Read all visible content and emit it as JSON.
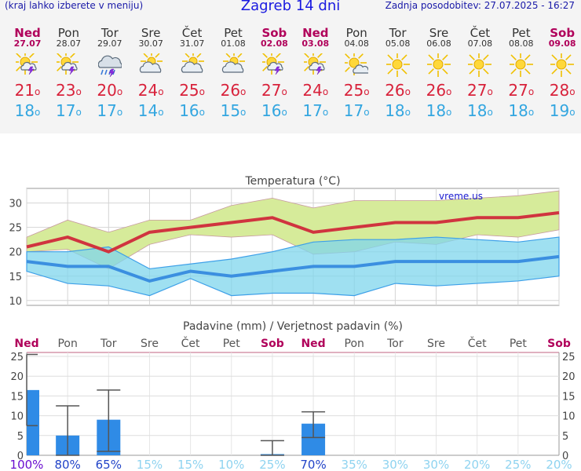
{
  "header": {
    "hint": "(kraj lahko izberete v meniju)",
    "title": "Zagreb 14 dni",
    "updated": "Zadnja posodobitev: 27.07.2025 - 16:27"
  },
  "days": [
    {
      "name": "Ned",
      "date": "27.07",
      "icon": "sun-cloud-lightning-icon",
      "max": 21,
      "min": 18,
      "weekend": true
    },
    {
      "name": "Pon",
      "date": "28.07",
      "icon": "sun-cloud-lightning-icon",
      "max": 23,
      "min": 17,
      "weekend": false
    },
    {
      "name": "Tor",
      "date": "29.07",
      "icon": "cloud-rain-lightning-icon",
      "max": 20,
      "min": 17,
      "weekend": false
    },
    {
      "name": "Sre",
      "date": "30.07",
      "icon": "sun-cloud-icon",
      "max": 24,
      "min": 14,
      "weekend": false
    },
    {
      "name": "Čet",
      "date": "31.07",
      "icon": "sun-cloud-icon",
      "max": 25,
      "min": 16,
      "weekend": false
    },
    {
      "name": "Pet",
      "date": "01.08",
      "icon": "sun-cloud-icon",
      "max": 26,
      "min": 15,
      "weekend": false
    },
    {
      "name": "Sob",
      "date": "02.08",
      "icon": "sun-cloud-lightning-icon",
      "max": 27,
      "min": 16,
      "weekend": true
    },
    {
      "name": "Ned",
      "date": "03.08",
      "icon": "sun-cloud-lightning-icon",
      "max": 24,
      "min": 17,
      "weekend": true
    },
    {
      "name": "Pon",
      "date": "04.08",
      "icon": "sun-small-cloud-icon",
      "max": 25,
      "min": 17,
      "weekend": false
    },
    {
      "name": "Tor",
      "date": "05.08",
      "icon": "sun-icon",
      "max": 26,
      "min": 18,
      "weekend": false
    },
    {
      "name": "Sre",
      "date": "06.08",
      "icon": "sun-icon",
      "max": 26,
      "min": 18,
      "weekend": false
    },
    {
      "name": "Čet",
      "date": "07.08",
      "icon": "sun-icon",
      "max": 27,
      "min": 18,
      "weekend": false
    },
    {
      "name": "Pet",
      "date": "08.08",
      "icon": "sun-icon",
      "max": 27,
      "min": 18,
      "weekend": false
    },
    {
      "name": "Sob",
      "date": "09.08",
      "icon": "sun-icon",
      "max": 28,
      "min": 19,
      "weekend": true
    }
  ],
  "chart_data": [
    {
      "type": "area",
      "title": "Temperatura (°C)",
      "watermark": "vreme.us",
      "ylim": [
        9,
        33
      ],
      "yticks": [
        10,
        15,
        20,
        25,
        30
      ],
      "grid": true,
      "series": [
        {
          "role": "max-band-upper",
          "values": [
            23,
            26.5,
            24,
            26.5,
            26.5,
            29.5,
            31,
            29,
            30.5,
            30.5,
            30.5,
            31,
            31.5,
            32.5
          ],
          "color": "#d6eb9a"
        },
        {
          "role": "max-mean",
          "values": [
            21,
            23,
            20,
            24,
            25,
            26,
            27,
            24,
            25,
            26,
            26,
            27,
            27,
            28
          ],
          "color": "#d0343f"
        },
        {
          "role": "max-band-lower",
          "values": [
            20,
            20.5,
            16.5,
            21.5,
            23.5,
            23,
            23.5,
            19.5,
            20,
            22,
            21.5,
            23.5,
            23,
            24.5
          ],
          "color": "#d6eb9a"
        },
        {
          "role": "min-band-upper",
          "values": [
            20,
            20,
            21,
            16.5,
            17.5,
            18.5,
            20,
            22,
            22.5,
            22.5,
            23,
            22.5,
            22,
            23
          ],
          "color": "#9edff0"
        },
        {
          "role": "min-mean",
          "values": [
            18,
            17,
            17,
            14,
            16,
            15,
            16,
            17,
            17,
            18,
            18,
            18,
            18,
            19
          ],
          "color": "#3b8fe0"
        },
        {
          "role": "min-band-lower",
          "values": [
            16,
            13.5,
            13,
            11,
            14.5,
            11,
            11.5,
            11.5,
            11,
            13.5,
            13,
            13.5,
            14,
            15
          ],
          "color": "#9edff0"
        }
      ]
    },
    {
      "type": "bar",
      "title": "Padavine (mm) / Verjetnost padavin (%)",
      "categories": [
        "Ned",
        "Pon",
        "Tor",
        "Sre",
        "Čet",
        "Pet",
        "Sob",
        "Ned",
        "Pon",
        "Tor",
        "Sre",
        "Čet",
        "Pet",
        "Sob"
      ],
      "weekend": [
        true,
        false,
        false,
        false,
        false,
        false,
        true,
        true,
        false,
        false,
        false,
        false,
        false,
        true
      ],
      "values": [
        16.5,
        5,
        9,
        0,
        0,
        0,
        0.3,
        8,
        0,
        0,
        0,
        0,
        0,
        0
      ],
      "range_low": [
        7.5,
        0,
        1,
        0,
        0,
        0,
        0,
        4.5,
        0,
        0,
        0,
        0,
        0,
        0
      ],
      "range_high": [
        25.5,
        12.5,
        16.5,
        0,
        0,
        0,
        3.7,
        11,
        0,
        0,
        0,
        0,
        0,
        0
      ],
      "probability": [
        "100%",
        "80%",
        "65%",
        "15%",
        "15%",
        "10%",
        "25%",
        "70%",
        "35%",
        "30%",
        "30%",
        "20%",
        "25%",
        "20%"
      ],
      "probability_values": [
        100,
        80,
        65,
        15,
        15,
        10,
        25,
        70,
        35,
        30,
        30,
        20,
        25,
        20
      ],
      "ylim": [
        0,
        26
      ],
      "yticks": [
        0,
        5,
        10,
        15,
        20,
        25
      ],
      "bar_color": "#2f8be6"
    }
  ],
  "colors": {
    "weekend": "#b0005a",
    "max": "#d8223b",
    "min": "#33a6e0",
    "text": "#333333"
  }
}
